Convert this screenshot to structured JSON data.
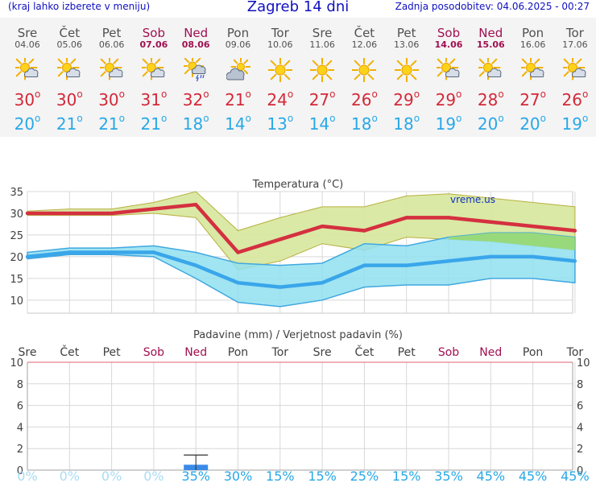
{
  "header": {
    "left_note": "(kraj lahko izberete v meniju)",
    "title": "Zagreb 14 dni",
    "updated": "Zadnja posodobitev: 04.06.2025 - 00:27"
  },
  "days": [
    {
      "name": "Sre",
      "date": "04.06",
      "weekend": false,
      "icon": "sun-cloud-icon",
      "tmax": "30",
      "tmin": "20"
    },
    {
      "name": "Čet",
      "date": "05.06",
      "weekend": false,
      "icon": "sun-cloud-icon",
      "tmax": "30",
      "tmin": "21"
    },
    {
      "name": "Pet",
      "date": "06.06",
      "weekend": false,
      "icon": "sun-cloud-icon",
      "tmax": "30",
      "tmin": "21"
    },
    {
      "name": "Sob",
      "date": "07.06",
      "weekend": true,
      "icon": "sun-cloud-icon",
      "tmax": "31",
      "tmin": "21"
    },
    {
      "name": "Ned",
      "date": "08.06",
      "weekend": true,
      "icon": "sun-cloud-storm-icon",
      "tmax": "32",
      "tmin": "18"
    },
    {
      "name": "Pon",
      "date": "09.06",
      "weekend": false,
      "icon": "cloud-sun-icon",
      "tmax": "21",
      "tmin": "14"
    },
    {
      "name": "Tor",
      "date": "10.06",
      "weekend": false,
      "icon": "sun-icon",
      "tmax": "24",
      "tmin": "13"
    },
    {
      "name": "Sre",
      "date": "11.06",
      "weekend": false,
      "icon": "sun-icon",
      "tmax": "27",
      "tmin": "14"
    },
    {
      "name": "Čet",
      "date": "12.06",
      "weekend": false,
      "icon": "sun-icon",
      "tmax": "26",
      "tmin": "18"
    },
    {
      "name": "Pet",
      "date": "13.06",
      "weekend": false,
      "icon": "sun-icon",
      "tmax": "29",
      "tmin": "18"
    },
    {
      "name": "Sob",
      "date": "14.06",
      "weekend": true,
      "icon": "sun-cloud-icon",
      "tmax": "29",
      "tmin": "19"
    },
    {
      "name": "Ned",
      "date": "15.06",
      "weekend": true,
      "icon": "sun-cloud-icon",
      "tmax": "28",
      "tmin": "20"
    },
    {
      "name": "Pon",
      "date": "16.06",
      "weekend": false,
      "icon": "sun-cloud-icon",
      "tmax": "27",
      "tmin": "20"
    },
    {
      "name": "Tor",
      "date": "17.06",
      "weekend": false,
      "icon": "sun-cloud-icon",
      "tmax": "26",
      "tmin": "19"
    }
  ],
  "colors": {
    "max_line": "#d43040",
    "min_line": "#3aa6ea",
    "max_band": "#d8e8a0",
    "max_band_edge": "#b8b040",
    "min_band": "#90e0f0",
    "min_band_edge": "#40a8e0",
    "overlap": "#98d870",
    "precip_bar": "#3a8ae8",
    "weekend": "#a01050",
    "prob_text": "#28a8e8",
    "prob_faint": "#a8dcf4"
  },
  "chart_data": [
    {
      "type": "line",
      "title": "Temperatura (°C)",
      "watermark": "vreme.us",
      "ylim": [
        7,
        35
      ],
      "yticks": [
        10,
        15,
        20,
        25,
        30,
        35
      ],
      "categories": [
        "Sre",
        "Čet",
        "Pet",
        "Sob",
        "Ned",
        "Pon",
        "Tor",
        "Sre",
        "Čet",
        "Pet",
        "Sob",
        "Ned",
        "Pon",
        "Tor"
      ],
      "series": [
        {
          "values": [
            30,
            30,
            30,
            31,
            32,
            21,
            24,
            27,
            26,
            29,
            29,
            28,
            27,
            26
          ]
        },
        {
          "values": [
            20,
            21,
            21,
            21,
            18,
            14,
            13,
            14,
            18,
            18,
            19,
            20,
            20,
            19
          ]
        }
      ],
      "max_band_high": [
        30.5,
        31,
        31,
        32.5,
        35,
        26,
        29,
        31.5,
        31.5,
        34,
        34.5,
        33.5,
        32.5,
        31.5
      ],
      "max_band_low": [
        29.5,
        29.5,
        29.5,
        30,
        29,
        17,
        19,
        23,
        21.5,
        24.5,
        24,
        23.5,
        22.5,
        21.5
      ],
      "min_band_high": [
        21,
        22,
        22,
        22.5,
        21,
        18.5,
        18,
        18.5,
        23,
        22.5,
        24.5,
        25.5,
        25.5,
        24.5
      ],
      "min_band_low": [
        19.5,
        20.5,
        20.5,
        20,
        15,
        9.5,
        8.5,
        10,
        13,
        13.5,
        13.5,
        15,
        15,
        14
      ]
    },
    {
      "type": "bar",
      "title": "Padavine (mm) / Verjetnost padavin (%)",
      "categories": [
        "Sre",
        "Čet",
        "Pet",
        "Sob",
        "Ned",
        "Pon",
        "Tor",
        "Sre",
        "Čet",
        "Pet",
        "Sob",
        "Ned",
        "Pon",
        "Tor"
      ],
      "ylim": [
        0,
        10
      ],
      "yticks": [
        0,
        2,
        4,
        6,
        8,
        10
      ],
      "values": [
        0,
        0,
        0,
        0,
        0.5,
        0,
        0,
        0,
        0,
        0,
        0,
        0,
        0,
        0
      ],
      "error_high": [
        0,
        0,
        0,
        0,
        1.4,
        0,
        0,
        0,
        0,
        0,
        0,
        0,
        0,
        0
      ],
      "probability": [
        "0%",
        "0%",
        "0%",
        "0%",
        "35%",
        "30%",
        "15%",
        "15%",
        "25%",
        "15%",
        "35%",
        "45%",
        "45%",
        "45%"
      ]
    }
  ]
}
